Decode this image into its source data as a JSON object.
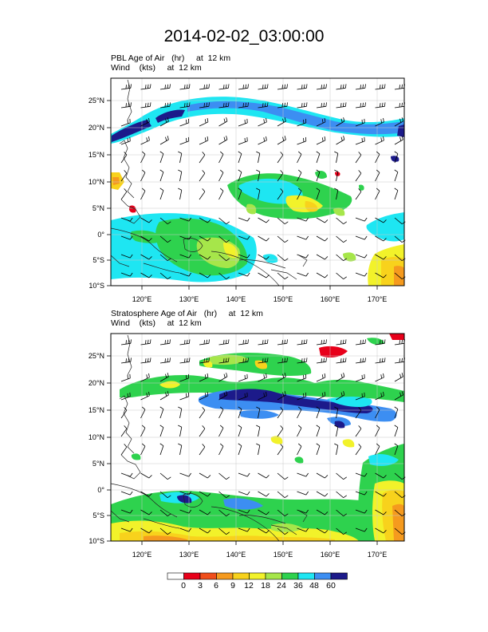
{
  "title": "2014-02-02_03:00:00",
  "panels": [
    {
      "id": "pbl",
      "title_line1": "PBL Age of Air   (hr)     at  12 km",
      "title_line2": "Wind    (kts)     at  12 km"
    },
    {
      "id": "stratosphere",
      "title_line1": "Stratosphere Age of Air   (hr)     at  12 km",
      "title_line2": "Wind    (kts)     at  12 km"
    }
  ],
  "lat_labels": [
    "25°N",
    "20°N",
    "15°N",
    "10°N",
    "5°N",
    "0°",
    "5°S",
    "10°S"
  ],
  "lon_labels": [
    "120°E",
    "130°E",
    "140°E",
    "150°E",
    "160°E",
    "170°E"
  ],
  "colorbar": {
    "labels": [
      "0",
      "3",
      "6",
      "9",
      "12",
      "18",
      "24",
      "36",
      "48",
      "60"
    ],
    "colors": [
      "#ffffff",
      "#e8001a",
      "#f04e1a",
      "#f59a1e",
      "#f8d21c",
      "#f2f22a",
      "#a6e64a",
      "#2ed24e",
      "#1ee6f2",
      "#3c8ef2",
      "#1c1a8a"
    ]
  }
}
